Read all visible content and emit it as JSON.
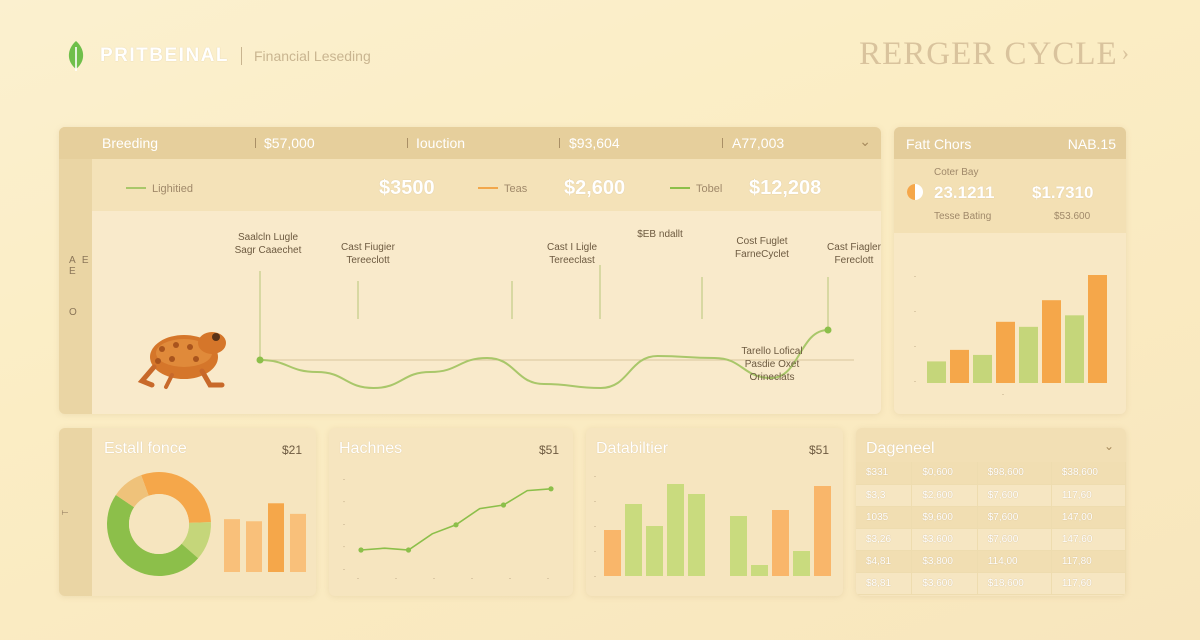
{
  "header": {
    "brand": "PRITBEINAL",
    "tagline": "Financial Leseding",
    "cycle_title": "RERGER CYCLE",
    "cycle_chevron": "›"
  },
  "main_panel": {
    "tabs": [
      {
        "label": "Breeding",
        "value": "$57,000"
      },
      {
        "label": "Iouction",
        "value": "$93,604"
      },
      {
        "label": "A77,003"
      }
    ],
    "rail_labels": [
      "A E E",
      "O"
    ],
    "kpis": [
      {
        "legend": "Lighitied",
        "color": "#a9c76a",
        "value": "$3500"
      },
      {
        "legend": "Teas",
        "color": "#f2a74b",
        "value": "$2,600"
      },
      {
        "legend": "Tobel",
        "color": "#8cbf4a",
        "value": "$12,208"
      }
    ],
    "annotations": [
      {
        "line1": "Saalcln Lugle",
        "line2": "Sagr Caaechet"
      },
      {
        "line1": "Cast Fiugier",
        "line2": "Tereeclott"
      },
      {
        "line1": "Cast I Ligle",
        "line2": "Tereeclast"
      },
      {
        "line1": "$EB ndallt",
        "line2": ""
      },
      {
        "line1": "Cost Fuglet",
        "line2": "FarneCyclet"
      },
      {
        "line1": "Cast Fiagler",
        "line2": "Fereclott"
      }
    ],
    "bottom_note": [
      "Tarello Lofical",
      "Pasdie Oxet",
      "Orineclats"
    ],
    "icon": "frog-illustration"
  },
  "side_panel": {
    "title": "Fatt Chors",
    "value": "NAB.15",
    "sub_label": "Coter Bay",
    "metric_a": "23.1211",
    "metric_b": "$1.7310",
    "sub_a": "Tesse Bating",
    "sub_b": "$53.600",
    "bars": [
      {
        "value": 3,
        "color": "#c5d67a"
      },
      {
        "value": 4.6,
        "color": "#f5a74a"
      },
      {
        "value": 3.9,
        "color": "#c5d67a"
      },
      {
        "value": 8.5,
        "color": "#f5a74a"
      },
      {
        "value": 7.8,
        "color": "#c5d67a"
      },
      {
        "value": 11.5,
        "color": "#f5a74a"
      },
      {
        "value": 9.4,
        "color": "#c5d67a"
      },
      {
        "value": 15,
        "color": "#f5a74a"
      }
    ]
  },
  "bottom": {
    "p1": {
      "title": "Estall fonce",
      "value": "$21",
      "rail": "T"
    },
    "p2": {
      "title": "Hachnes",
      "value": "$51"
    },
    "p3": {
      "title": "Databiltier",
      "value": "$51"
    },
    "p4": {
      "title": "Dageneel",
      "chevron": "⌄",
      "rows": [
        [
          "$331",
          "$0,600",
          "$98,600",
          "$38,600"
        ],
        [
          "$3,3",
          "$2,600",
          "$7,600",
          "117,60"
        ],
        [
          "1035",
          "$9,600",
          "$7,600",
          "147,00"
        ],
        [
          "$3,26",
          "$3,600",
          "$7,600",
          "147,60"
        ],
        [
          "$4,81",
          "$3,800",
          "114,00",
          "117,80"
        ],
        [
          "$8,81",
          "$3,600",
          "$18,600",
          "117,60"
        ]
      ]
    }
  },
  "chart_data": [
    {
      "type": "line",
      "title": "Breeding",
      "x": [
        0,
        1,
        2,
        3,
        4,
        5,
        6,
        7,
        8,
        9,
        10
      ],
      "series": [
        {
          "values": [
            0,
            -12,
            -28,
            -12,
            2,
            -24,
            -28,
            4,
            2,
            -18,
            30
          ]
        }
      ]
    },
    {
      "type": "bar",
      "title": "Fatt Chors",
      "values": [
        3,
        4.6,
        3.9,
        8.5,
        7.8,
        11.5,
        9.4,
        15
      ]
    },
    {
      "type": "pie",
      "title": "Estall fonce",
      "values": [
        30,
        12,
        48,
        10
      ],
      "colors": [
        "#f5a74a",
        "#c5d67a",
        "#8cbf4a",
        "#efc27a"
      ]
    },
    {
      "type": "bar",
      "title": "Estall fonce",
      "values": [
        5,
        4.8,
        6.5,
        5.5
      ],
      "colors": [
        "#f9c07a",
        "#f9c07a",
        "#f5a74a",
        "#f9c07a"
      ]
    },
    {
      "type": "line",
      "title": "Hachnes",
      "x": [
        0,
        1,
        2,
        3,
        4,
        5,
        6,
        7,
        8
      ],
      "series": [
        {
          "values": [
            1,
            1.1,
            1,
            1.9,
            2.4,
            3.3,
            3.5,
            4.3,
            4.4
          ]
        }
      ]
    },
    {
      "type": "bar",
      "title": "Databiltier",
      "values": [
        4.6,
        7.2,
        5.0,
        9.2,
        8.2,
        0,
        6.0,
        1.1,
        6.6,
        2.5,
        9.0
      ],
      "colors": [
        "#f9b66a",
        "#c9db7e",
        "#c9db7e",
        "#c9db7e",
        "#c9db7e",
        "#ffffff",
        "#c9db7e",
        "#c9db7e",
        "#f9b66a",
        "#c9db7e",
        "#f9b66a"
      ]
    }
  ]
}
